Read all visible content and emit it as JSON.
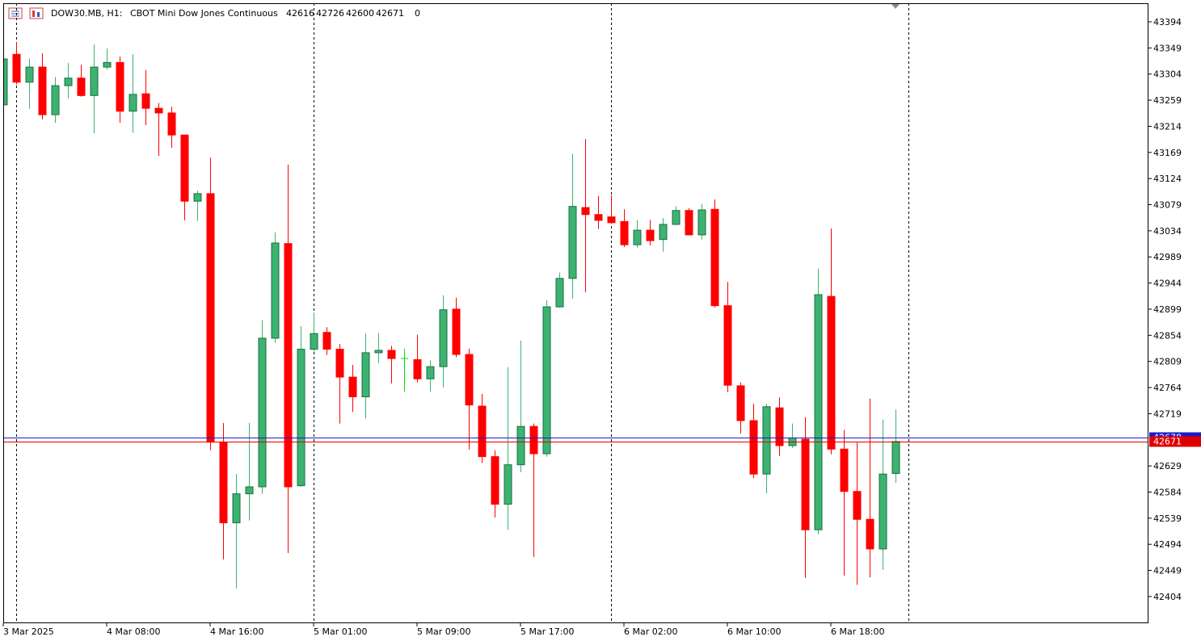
{
  "chart_data": {
    "type": "candlestick",
    "symbol": "DOW30.MB, H1:",
    "description": "CBOT Mini Dow Jones Continuous",
    "header_volume": 0,
    "categories": [
      "3 Mar 2025",
      null,
      null,
      null,
      null,
      null,
      null,
      null,
      "4 Mar 08:00",
      null,
      null,
      null,
      null,
      null,
      null,
      null,
      "4 Mar 16:00",
      null,
      null,
      null,
      null,
      null,
      null,
      null,
      "5 Mar 01:00",
      null,
      null,
      null,
      null,
      null,
      null,
      null,
      "5 Mar 09:00",
      null,
      null,
      null,
      null,
      null,
      null,
      null,
      "5 Mar 17:00",
      null,
      null,
      null,
      null,
      null,
      null,
      null,
      "6 Mar 02:00",
      null,
      null,
      null,
      null,
      null,
      null,
      null,
      "6 Mar 10:00",
      null,
      null,
      null,
      null,
      null,
      null,
      null,
      "6 Mar 18:00",
      null,
      null,
      null,
      null,
      null
    ],
    "open": [
      43251,
      43338,
      43290,
      43316,
      43234,
      43284,
      43297,
      43267,
      43316,
      43324,
      43240,
      43270,
      43245,
      43237,
      43199,
      43085,
      43098,
      42670,
      42531,
      42581,
      42593,
      42849,
      43012,
      42595,
      42830,
      42859,
      42830,
      42782,
      42748,
      42824,
      42828,
      42814,
      42812,
      42779,
      42800,
      42899,
      42821,
      42732,
      42645,
      42563,
      42631,
      42697,
      42650,
      42903,
      42952,
      43074,
      43062,
      43058,
      43050,
      43010,
      43035,
      43019,
      43045,
      43069,
      43027,
      43071,
      42905,
      42767,
      42707,
      42615,
      42729,
      42664,
      42675,
      42519,
      42921,
      42658,
      42585,
      42537,
      42486,
      42616
    ],
    "high": [
      43334,
      43359,
      43331,
      43340,
      43299,
      43323,
      43320,
      43355,
      43348,
      43334,
      43338,
      43311,
      43254,
      43248,
      43199,
      43103,
      43160,
      42703,
      42615,
      42703,
      42880,
      43031,
      43148,
      42870,
      42893,
      42868,
      42839,
      42803,
      42857,
      42858,
      42836,
      42831,
      42855,
      42811,
      42923,
      42919,
      42831,
      42753,
      42656,
      42799,
      42845,
      42702,
      42914,
      42962,
      43167,
      43192,
      43094,
      43095,
      43071,
      43053,
      43053,
      43056,
      43076,
      43073,
      43080,
      43088,
      42946,
      42773,
      42736,
      42736,
      42747,
      42702,
      42713,
      42969,
      43038,
      42691,
      42670,
      42745,
      42709,
      42726
    ],
    "low": [
      43251,
      43286,
      43244,
      43226,
      43220,
      43262,
      43265,
      43202,
      43312,
      43220,
      43203,
      43216,
      43163,
      43177,
      43052,
      43051,
      42656,
      42468,
      42418,
      42535,
      42581,
      42841,
      42479,
      42593,
      42826,
      42820,
      42702,
      42722,
      42711,
      42806,
      42771,
      42757,
      42773,
      42757,
      42764,
      42816,
      42657,
      42634,
      42540,
      42519,
      42618,
      42472,
      42645,
      42902,
      42917,
      42928,
      43037,
      43046,
      43006,
      43005,
      43009,
      42998,
      43044,
      43026,
      43019,
      42902,
      42756,
      42685,
      42608,
      42582,
      42646,
      42660,
      42436,
      42511,
      42649,
      42440,
      42424,
      42437,
      42450,
      42600
    ],
    "close": [
      43330,
      43290,
      43316,
      43234,
      43284,
      43297,
      43267,
      43316,
      43324,
      43240,
      43269,
      43245,
      43237,
      43199,
      43085,
      43098,
      42670,
      42531,
      42581,
      42593,
      42849,
      43013,
      42593,
      42830,
      42857,
      42830,
      42782,
      42748,
      42824,
      42828,
      42814,
      42814,
      42779,
      42800,
      42898,
      42821,
      42734,
      42645,
      42563,
      42631,
      42697,
      42650,
      42903,
      42952,
      43076,
      43062,
      43052,
      43048,
      43010,
      43035,
      43017,
      43045,
      43069,
      43027,
      43070,
      42905,
      42768,
      42707,
      42615,
      42731,
      42664,
      42677,
      42519,
      42924,
      42658,
      42585,
      42537,
      42486,
      42615,
      42671
    ],
    "up_color": "#3cb371",
    "down_color": "#ff0000",
    "doji_color": "#00e000",
    "ylim": [
      42358,
      43426
    ],
    "yticks": [
      43394,
      43349,
      43304,
      43259,
      43214,
      43169,
      43124,
      43079,
      43034,
      42989,
      42944,
      42899,
      42854,
      42809,
      42764,
      42719,
      42629,
      42584,
      42539,
      42494,
      42449,
      42404
    ],
    "price_lines": [
      {
        "value": 42678,
        "color": "#1c1cc8"
      },
      {
        "value": 42671,
        "color": "#e00000"
      }
    ]
  }
}
